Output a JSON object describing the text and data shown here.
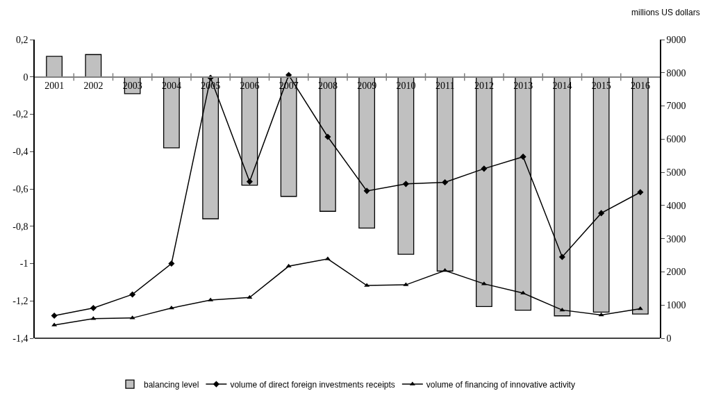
{
  "chart_data": {
    "type": "bar",
    "categories": [
      "2001",
      "2002",
      "2003",
      "2004",
      "2005",
      "2006",
      "2007",
      "2008",
      "2009",
      "2010",
      "2011",
      "2012",
      "2013",
      "2014",
      "2015",
      "2016"
    ],
    "series": [
      {
        "name": "balancing level",
        "color": "#c0c0c0",
        "values": [
          0.11,
          0.12,
          -0.09,
          -0.38,
          -0.76,
          -0.58,
          -0.64,
          -0.72,
          -0.81,
          -0.95,
          -1.04,
          -1.23,
          -1.25,
          -1.28,
          -1.26,
          -1.27
        ]
      },
      {
        "name": "volume of direct foreign investments receipts",
        "type": "line",
        "axis": "y2",
        "marker": "diamond",
        "color": "#000000",
        "values": [
          680,
          910,
          1320,
          2250,
          7850,
          4720,
          7930,
          6070,
          4440,
          4650,
          4700,
          5110,
          5470,
          2450,
          3770,
          4400
        ]
      },
      {
        "name": "volume of financing of innovative activity",
        "type": "line",
        "axis": "y2",
        "marker": "triangle",
        "color": "#000000",
        "values": [
          400,
          590,
          610,
          910,
          1150,
          1230,
          2170,
          2390,
          1590,
          1610,
          2040,
          1640,
          1360,
          850,
          700,
          890
        ]
      }
    ],
    "ylim": [
      -1.4,
      0.2
    ],
    "yticks": [
      {
        "value": 0.2,
        "label": "0,2"
      },
      0,
      {
        "value": -0.2,
        "label": "-0,2"
      },
      {
        "value": -0.4,
        "label": "-0,4"
      },
      {
        "value": -0.6,
        "label": "-0,6"
      },
      {
        "value": -0.8,
        "label": "-0,8"
      },
      -1,
      {
        "value": -1.2,
        "label": "-1,2"
      },
      {
        "value": -1.4,
        "label": "-1,4"
      }
    ],
    "y2lim": [
      0,
      9000
    ],
    "y2ticks": [
      0,
      1000,
      2000,
      3000,
      4000,
      5000,
      6000,
      7000,
      8000,
      9000
    ],
    "y2label": "millions US dollars",
    "legend": "bottom",
    "line_style": "solid"
  }
}
